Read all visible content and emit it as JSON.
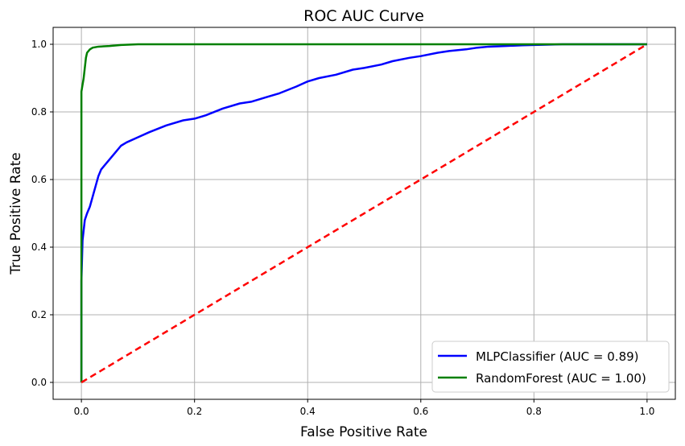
{
  "chart_data": {
    "type": "line",
    "title": "ROC AUC Curve",
    "xlabel": "False Positive Rate",
    "ylabel": "True Positive Rate",
    "xlim": [
      -0.05,
      1.05
    ],
    "ylim": [
      -0.05,
      1.05
    ],
    "xticks": [
      0.0,
      0.2,
      0.4,
      0.6,
      0.8,
      1.0
    ],
    "yticks": [
      0.0,
      0.2,
      0.4,
      0.6,
      0.8,
      1.0
    ],
    "xtick_labels": [
      "0.0",
      "0.2",
      "0.4",
      "0.6",
      "0.8",
      "1.0"
    ],
    "ytick_labels": [
      "0.0",
      "0.2",
      "0.4",
      "0.6",
      "0.8",
      "1.0"
    ],
    "grid": true,
    "legend_position": "bottom-right",
    "series": [
      {
        "name": "MLPClassifier (AUC = 0.89)",
        "color": "#0000ff",
        "style": "solid",
        "x": [
          0.0,
          0.0,
          0.002,
          0.004,
          0.006,
          0.01,
          0.015,
          0.02,
          0.025,
          0.03,
          0.035,
          0.04,
          0.05,
          0.06,
          0.07,
          0.08,
          0.1,
          0.12,
          0.15,
          0.18,
          0.2,
          0.22,
          0.25,
          0.28,
          0.3,
          0.33,
          0.35,
          0.38,
          0.4,
          0.42,
          0.45,
          0.48,
          0.5,
          0.53,
          0.55,
          0.58,
          0.6,
          0.63,
          0.65,
          0.68,
          0.7,
          0.72,
          0.75,
          0.78,
          0.8,
          0.83,
          0.85,
          0.9,
          0.95,
          1.0
        ],
        "y": [
          0.0,
          0.3,
          0.42,
          0.45,
          0.48,
          0.5,
          0.52,
          0.55,
          0.58,
          0.61,
          0.63,
          0.64,
          0.66,
          0.68,
          0.7,
          0.71,
          0.725,
          0.74,
          0.76,
          0.775,
          0.78,
          0.79,
          0.81,
          0.825,
          0.83,
          0.845,
          0.855,
          0.875,
          0.89,
          0.9,
          0.91,
          0.925,
          0.93,
          0.94,
          0.95,
          0.96,
          0.965,
          0.975,
          0.98,
          0.985,
          0.99,
          0.993,
          0.995,
          0.997,
          0.998,
          0.999,
          1.0,
          1.0,
          1.0,
          1.0
        ]
      },
      {
        "name": "RandomForest (AUC = 1.00)",
        "color": "#008000",
        "style": "solid",
        "x": [
          0.0,
          0.0,
          0.002,
          0.004,
          0.006,
          0.008,
          0.01,
          0.015,
          0.02,
          0.03,
          0.05,
          0.07,
          0.1,
          0.3,
          0.6,
          1.0
        ],
        "y": [
          0.0,
          0.86,
          0.88,
          0.9,
          0.93,
          0.96,
          0.975,
          0.985,
          0.99,
          0.993,
          0.995,
          0.998,
          1.0,
          1.0,
          1.0,
          1.0
        ]
      },
      {
        "color": "#ff0000",
        "style": "dashed",
        "x": [
          0.0,
          1.0
        ],
        "y": [
          0.0,
          1.0
        ]
      }
    ]
  }
}
